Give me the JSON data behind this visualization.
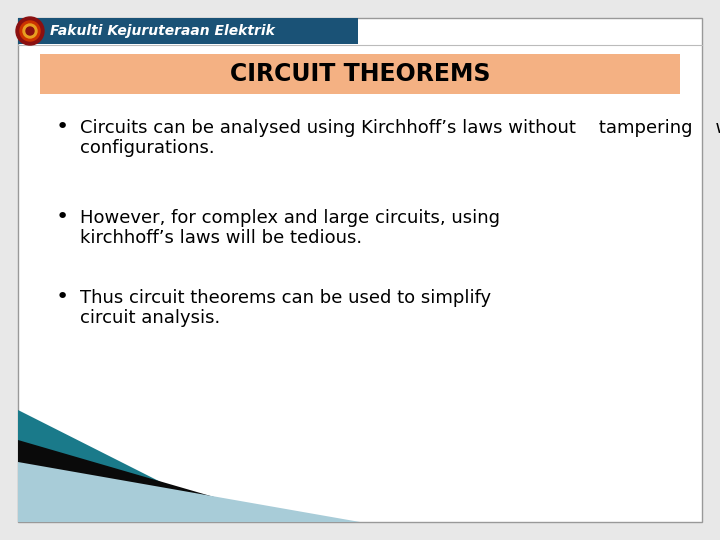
{
  "title": "CIRCUIT THEOREMS",
  "header_text": "Fakulti Kejuruteraan Elektrik",
  "header_bg": "#1a5276",
  "header_text_color": "#ffffff",
  "title_bg": "#f4b183",
  "title_text_color": "#000000",
  "body_bg": "#ffffff",
  "outer_bg": "#e8e8e8",
  "border_color": "#999999",
  "bullet_points": [
    "Circuits can be analysed using Kirchhoff’s laws without    tampering    with    their    original\nconfigurations.",
    "However, for complex and large circuits, using\nkirchhoff’s laws will be tedious.",
    "Thus circuit theorems can be used to simplify\ncircuit analysis."
  ],
  "bullet_color": "#000000",
  "text_color": "#000000",
  "title_fontsize": 17,
  "body_fontsize": 13,
  "header_fontsize": 10,
  "footer_teal": "#1a7a8a",
  "footer_black": "#0a0a0a",
  "footer_light": "#a8ccd8"
}
